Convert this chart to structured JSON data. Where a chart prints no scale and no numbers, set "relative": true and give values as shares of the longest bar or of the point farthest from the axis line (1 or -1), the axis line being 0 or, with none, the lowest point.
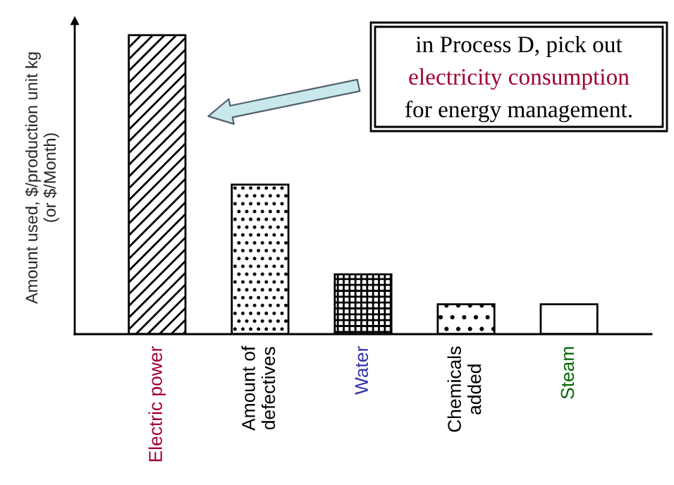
{
  "chart_data": {
    "type": "bar",
    "relative": true,
    "ylabel": "Amount used, $/production unit kg\n(or $/Month)",
    "categories": [
      "Electric power",
      "Amount of\ndefectives",
      "Water",
      "Chemicals\nadded",
      "Steam"
    ],
    "values": [
      1.0,
      0.5,
      0.2,
      0.1,
      0.1
    ],
    "annotations": [
      "in Process D, pick out\nelectricity consumption\nfor energy management."
    ],
    "grid": false,
    "legend": false
  }
}
